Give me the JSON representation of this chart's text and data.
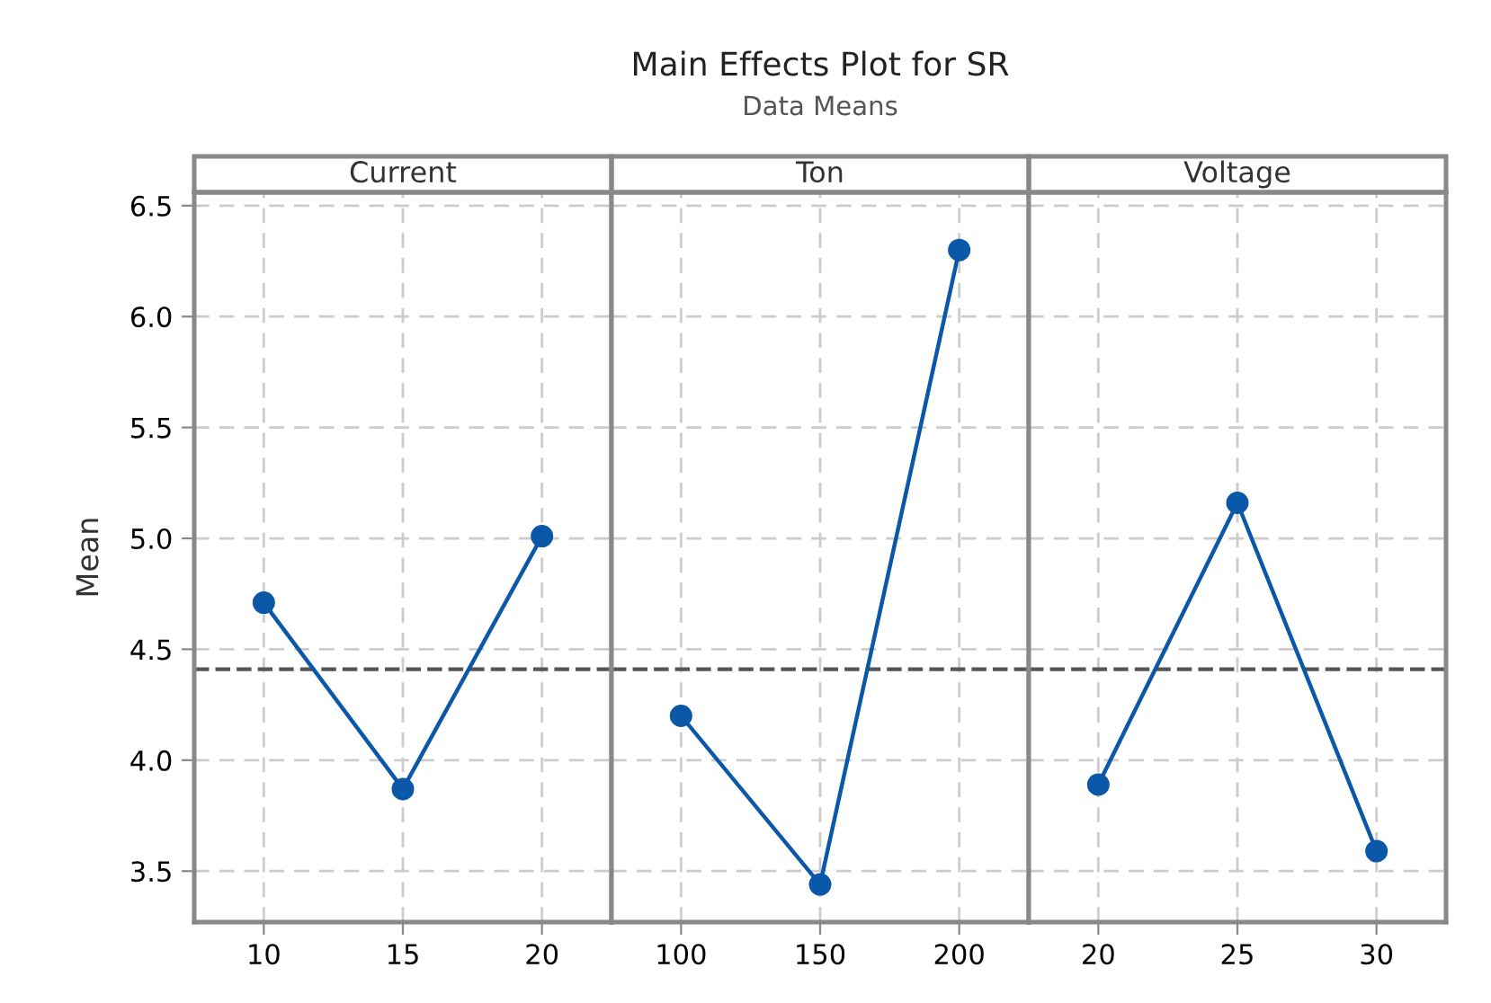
{
  "chart_data": [
    {
      "type": "line",
      "title": "Current",
      "ylabel": "Mean",
      "annotations": [
        "Main Effects Plot for SR",
        "Data Means"
      ],
      "categories": [
        "10",
        "15",
        "20"
      ],
      "values": [
        4.71,
        3.87,
        5.01
      ],
      "color": "#0b57a8",
      "marker": "circle",
      "ylim": [
        3.27,
        6.56
      ],
      "yticks": [
        3.5,
        {
          "value": 4,
          "label": "4.0"
        },
        4.5,
        {
          "value": 5,
          "label": "5.0"
        },
        5.5,
        {
          "value": 6,
          "label": "6.0"
        },
        6.5
      ],
      "grid": true,
      "ref_lines": [
        {
          "axis": "y",
          "value": 4.41,
          "color": "#555555",
          "line_style": "dashed"
        }
      ]
    },
    {
      "type": "line",
      "title": "Ton",
      "categories": [
        "100",
        "150",
        "200"
      ],
      "values": [
        4.2,
        3.44,
        6.3
      ],
      "color": "#0b57a8",
      "marker": "circle",
      "ylim": [
        3.27,
        6.56
      ],
      "yticks": [
        3.5,
        4.0,
        4.5,
        5.0,
        5.5,
        6.0,
        6.5
      ],
      "tick_labels": "x",
      "grid": true,
      "ref_lines": [
        {
          "axis": "y",
          "value": 4.41,
          "color": "#555555",
          "line_style": "dashed"
        }
      ]
    },
    {
      "type": "line",
      "title": "Voltage",
      "categories": [
        "20",
        "25",
        "30"
      ],
      "values": [
        3.89,
        5.16,
        3.59
      ],
      "color": "#0b57a8",
      "marker": "circle",
      "ylim": [
        3.27,
        6.56
      ],
      "yticks": [
        3.5,
        4.0,
        4.5,
        5.0,
        5.5,
        6.0,
        6.5
      ],
      "tick_labels": "x",
      "grid": true,
      "ref_lines": [
        {
          "axis": "y",
          "value": 4.41,
          "color": "#555555",
          "line_style": "dashed"
        }
      ]
    }
  ]
}
